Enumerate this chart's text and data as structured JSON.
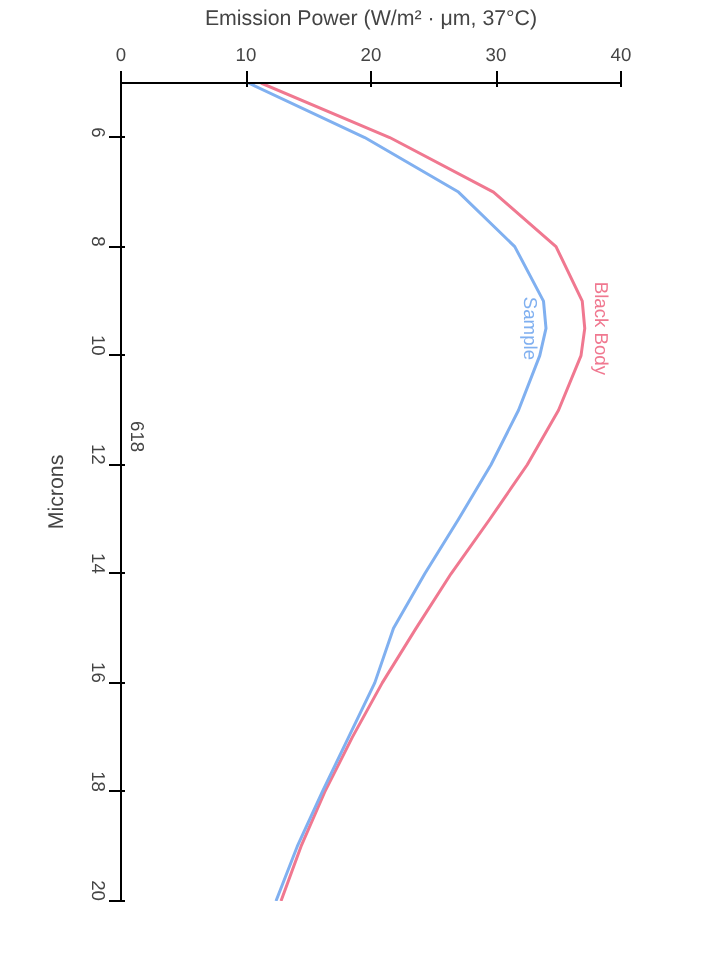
{
  "chart_data": {
    "type": "line",
    "xlabel": "Emission Power (W/m² · μm, 37°C)",
    "ylabel": "Microns",
    "x": [
      5,
      6,
      7,
      8,
      9,
      9.5,
      10,
      11,
      12,
      13,
      14,
      15,
      16,
      17,
      18,
      19,
      20
    ],
    "series": [
      {
        "name": "Black Body",
        "color": "#f07890",
        "values": [
          11.2,
          21.5,
          29.8,
          34.8,
          36.9,
          37.1,
          36.8,
          35,
          32.5,
          29.5,
          26.4,
          23.6,
          20.9,
          18.5,
          16.3,
          14.4,
          12.8
        ]
      },
      {
        "name": "Sample",
        "color": "#80b0f0",
        "values": [
          10.2,
          19.5,
          27,
          31.5,
          33.8,
          34,
          33.5,
          31.8,
          29.6,
          27,
          24.3,
          21.8,
          20.3,
          18.2,
          16.1,
          14.1,
          12.4
        ]
      }
    ],
    "xlim": [
      0,
      40
    ],
    "xticks": [
      0,
      10,
      20,
      30,
      40
    ],
    "ylim": [
      20,
      5
    ],
    "yticks": [
      6,
      8,
      10,
      12,
      14,
      16,
      18,
      20
    ],
    "annotations": [
      "618"
    ],
    "orientation": "horizontal",
    "marker": "none",
    "line_style": "solid"
  }
}
